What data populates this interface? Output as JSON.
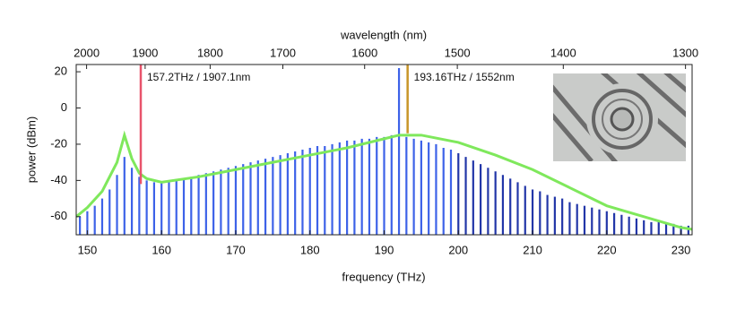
{
  "chart_data": {
    "type": "spectrum",
    "xlabel": "frequency (THz)",
    "ylabel": "power (dBm)",
    "x2label": "wavelength (nm)",
    "xlim": [
      148.5,
      231.5
    ],
    "ylim": [
      -70,
      24
    ],
    "xticks": [
      150,
      160,
      170,
      180,
      190,
      200,
      210,
      220,
      230
    ],
    "yticks": [
      20,
      0,
      -20,
      -40,
      -60
    ],
    "x2ticks": [
      {
        "value": 149.9,
        "label": "2000"
      },
      {
        "value": 157.79,
        "label": "1900"
      },
      {
        "value": 166.55,
        "label": "1800"
      },
      {
        "value": 176.35,
        "label": "1700"
      },
      {
        "value": 187.37,
        "label": "1600"
      },
      {
        "value": 199.86,
        "label": "1500"
      },
      {
        "value": 214.14,
        "label": "1400"
      },
      {
        "value": 230.61,
        "label": "1300"
      }
    ],
    "series": [
      {
        "color": "#3d62e8",
        "x": [
          149,
          150,
          151,
          152,
          153,
          154,
          155,
          156,
          157,
          158,
          159,
          160,
          161,
          162,
          163,
          164,
          165,
          166,
          167,
          168,
          169,
          170,
          171,
          172,
          173,
          174,
          175,
          176,
          177,
          178,
          179,
          180,
          181,
          182,
          183,
          184,
          185,
          186,
          187,
          188,
          189,
          190,
          191,
          192,
          193,
          194,
          195,
          196,
          197,
          198,
          199
        ],
        "values": [
          -60,
          -57,
          -54,
          -50,
          -45,
          -37,
          -27,
          -33,
          -38,
          -40,
          -41,
          -41,
          -40,
          -40,
          -39,
          -38,
          -37,
          -36,
          -35,
          -34,
          -33,
          -32,
          -31,
          -30,
          -29,
          -28,
          -27,
          -26,
          -25,
          -24,
          -23,
          -22,
          -21,
          -21,
          -20,
          -19,
          -18,
          -18,
          -17,
          -17,
          -16,
          -16,
          -15,
          22,
          -16,
          -17,
          -18,
          -19,
          -20,
          -22,
          -23
        ]
      },
      {
        "color": "#2236a8",
        "x": [
          200,
          201,
          202,
          203,
          204,
          205,
          206,
          207,
          208,
          209,
          210,
          211,
          212,
          213,
          214,
          215,
          216,
          217,
          218,
          219,
          220,
          221,
          222,
          223,
          224,
          225,
          226,
          227,
          228,
          229,
          230,
          231
        ],
        "values": [
          -25,
          -27,
          -29,
          -31,
          -33,
          -35,
          -37,
          -39,
          -41,
          -43,
          -45,
          -46,
          -48,
          -49,
          -50,
          -52,
          -53,
          -54,
          -55,
          -56,
          -57,
          -58,
          -59,
          -60,
          -61,
          -62,
          -63,
          -63,
          -64,
          -64,
          -65,
          -65
        ]
      }
    ],
    "curve": {
      "color": "#7fe85c",
      "x": [
        148.5,
        150,
        152,
        154,
        155,
        156,
        157,
        158,
        160,
        165,
        170,
        175,
        180,
        185,
        190,
        192,
        195,
        200,
        205,
        210,
        215,
        220,
        225,
        230,
        231.5
      ],
      "values": [
        -60,
        -55,
        -46,
        -30,
        -15,
        -28,
        -36,
        -39,
        -41,
        -38,
        -34,
        -30,
        -26,
        -22,
        -17,
        -15,
        -15,
        -19,
        -26,
        -34,
        -44,
        -54,
        -60,
        -66,
        -67
      ]
    },
    "markers": [
      {
        "x": 157.2,
        "label": "157.2THz / 1907.1nm",
        "color": "#e8536b"
      },
      {
        "x": 193.16,
        "label": "193.16THz / 1552nm",
        "color": "#c8962a"
      }
    ]
  }
}
